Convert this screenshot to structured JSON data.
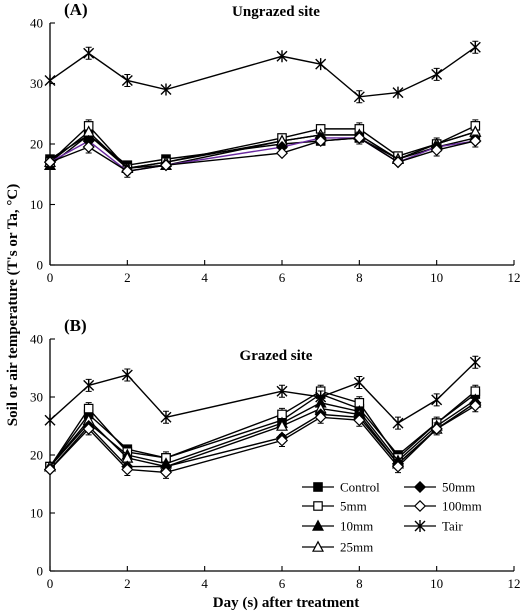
{
  "figure": {
    "ylabel": "Soil or air temperature (T's or Ta, °C)",
    "xlabel": "Day (s) after treatment"
  },
  "chart_data": [
    {
      "type": "line",
      "panel_label": "(A)",
      "title": "Ungrazed site",
      "xlim": [
        0,
        12
      ],
      "ylim": [
        0,
        40
      ],
      "xticks": [
        "0",
        "2",
        "4",
        "6",
        "8",
        "10",
        "12"
      ],
      "yticks": [
        "0",
        "10",
        "20",
        "30",
        "40"
      ],
      "x": [
        0,
        1,
        2,
        3,
        6,
        7,
        8,
        9,
        10,
        11
      ],
      "series": [
        {
          "name": "Control",
          "marker": "square-filled",
          "values": [
            17.5,
            21.5,
            16.5,
            17.5,
            20.0,
            20.5,
            21.0,
            17.5,
            19.5,
            21.0
          ]
        },
        {
          "name": "5mm",
          "marker": "square-open",
          "values": [
            17.0,
            23.0,
            16.0,
            17.0,
            21.0,
            22.5,
            22.5,
            18.0,
            20.0,
            23.0
          ]
        },
        {
          "name": "10mm",
          "marker": "triangle-filled",
          "values": [
            16.5,
            21.5,
            16.0,
            16.5,
            20.5,
            21.5,
            21.5,
            17.5,
            20.0,
            22.0
          ]
        },
        {
          "name": "25mm",
          "marker": "triangle-open",
          "values": [
            17.0,
            22.0,
            16.0,
            17.0,
            20.5,
            21.5,
            21.5,
            17.5,
            20.0,
            22.0
          ]
        },
        {
          "name": "50mm",
          "marker": "diamond-filled",
          "values": [
            17.0,
            20.5,
            15.5,
            16.5,
            19.5,
            21.0,
            21.0,
            17.0,
            19.5,
            20.5
          ]
        },
        {
          "name": "100mm",
          "marker": "diamond-open",
          "values": [
            17.0,
            19.5,
            15.5,
            16.5,
            18.5,
            20.5,
            21.0,
            17.0,
            19.0,
            20.5
          ]
        },
        {
          "name": "Tair",
          "marker": "star",
          "values": [
            30.5,
            35.0,
            30.5,
            29.0,
            34.5,
            33.2,
            27.8,
            28.5,
            31.5,
            36.0
          ]
        }
      ]
    },
    {
      "type": "line",
      "panel_label": "(B)",
      "title": "Grazed site",
      "xlim": [
        0,
        12
      ],
      "ylim": [
        0,
        40
      ],
      "xticks": [
        "0",
        "2",
        "4",
        "6",
        "8",
        "10",
        "12"
      ],
      "yticks": [
        "0",
        "10",
        "20",
        "30",
        "40"
      ],
      "x": [
        0,
        1,
        2,
        3,
        6,
        7,
        8,
        9,
        10,
        11
      ],
      "series": [
        {
          "name": "Control",
          "marker": "square-filled",
          "values": [
            18.0,
            27.0,
            21.0,
            19.5,
            26.0,
            30.5,
            28.0,
            20.0,
            25.5,
            30.5
          ]
        },
        {
          "name": "5mm",
          "marker": "square-open",
          "values": [
            18.0,
            28.0,
            20.5,
            19.5,
            27.0,
            31.0,
            29.0,
            19.5,
            25.5,
            31.0
          ]
        },
        {
          "name": "10mm",
          "marker": "triangle-filled",
          "values": [
            18.0,
            25.5,
            20.0,
            18.5,
            25.5,
            29.0,
            27.5,
            19.0,
            25.0,
            29.5
          ]
        },
        {
          "name": "25mm",
          "marker": "triangle-open",
          "values": [
            18.0,
            26.0,
            19.5,
            18.0,
            25.0,
            28.0,
            27.0,
            18.5,
            24.5,
            29.0
          ]
        },
        {
          "name": "50mm",
          "marker": "diamond-filled",
          "values": [
            17.5,
            25.0,
            18.0,
            18.0,
            23.0,
            27.0,
            26.5,
            18.5,
            24.5,
            29.0
          ]
        },
        {
          "name": "100mm",
          "marker": "diamond-open",
          "values": [
            17.5,
            24.5,
            17.5,
            17.0,
            22.5,
            26.5,
            26.0,
            18.0,
            24.5,
            28.5
          ]
        },
        {
          "name": "Tair",
          "marker": "star",
          "values": [
            26.0,
            32.0,
            33.8,
            26.5,
            31.0,
            30.0,
            32.5,
            25.5,
            29.5,
            36.0
          ]
        }
      ]
    }
  ],
  "legend": {
    "placement": "bottom-right",
    "columns": [
      [
        "Control",
        "5mm",
        "10mm",
        "25mm"
      ],
      [
        "50mm",
        "100mm",
        "Tair"
      ]
    ]
  },
  "colors": {
    "axis": "#000000",
    "series": "#000000",
    "accent_line": "#6a2aa0"
  }
}
